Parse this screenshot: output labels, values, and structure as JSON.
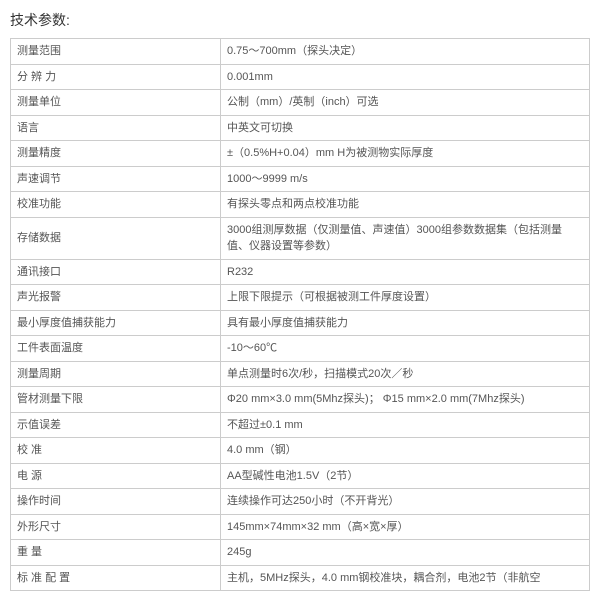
{
  "title": "技术参数:",
  "rows": [
    {
      "label": "测量范围",
      "value": "0.75～700mm（探头决定）"
    },
    {
      "label": "分 辨 力",
      "value": "0.001mm"
    },
    {
      "label": "测量单位",
      "value": "公制（mm）/英制（inch）可选"
    },
    {
      "label": "语言",
      "value": "中英文可切换"
    },
    {
      "label": "测量精度",
      "value": "±（0.5%H+0.04）mm H为被测物实际厚度"
    },
    {
      "label": "声速调节",
      "value": "1000～9999 m/s"
    },
    {
      "label": "校准功能",
      "value": "有探头零点和两点校准功能"
    },
    {
      "label": "存储数据",
      "value": "3000组测厚数据（仅测量值、声速值）3000组参数数据集（包括测量值、仪器设置等参数）"
    },
    {
      "label": "通讯接口",
      "value": "R232"
    },
    {
      "label": "声光报警",
      "value": "上限下限提示（可根据被测工件厚度设置）"
    },
    {
      "label": "最小厚度值捕获能力",
      "value": "具有最小厚度值捕获能力"
    },
    {
      "label": "工件表面温度",
      "value": "-10～60℃"
    },
    {
      "label": "测量周期",
      "value": "单点测量时6次/秒，扫描模式20次／秒"
    },
    {
      "label": "管材测量下限",
      "value": "Φ20 mm×3.0 mm(5Mhz探头)；   Φ15 mm×2.0 mm(7Mhz探头)"
    },
    {
      "label": "示值误差",
      "value": "不超过±0.1 mm"
    },
    {
      "label": "校  准",
      "value": "4.0 mm（钢）"
    },
    {
      "label": "电  源",
      "value": "AA型碱性电池1.5V（2节）"
    },
    {
      "label": "操作时间",
      "value": "连续操作可达250小时（不开背光）"
    },
    {
      "label": "外形尺寸",
      "value": "145mm×74mm×32 mm（高×宽×厚）"
    },
    {
      "label": "重   量",
      "value": "245g"
    },
    {
      "label": "标 准 配 置",
      "value": "主机，5MHz探头，4.0 mm钢校准块，耦合剂，电池2节（非航空"
    }
  ]
}
